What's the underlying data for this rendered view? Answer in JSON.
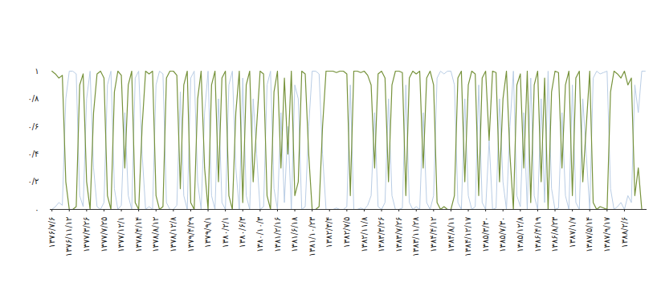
{
  "chart_data": {
    "type": "line",
    "categories": [
      "۱۳۷۶/۷/۶",
      null,
      null,
      null,
      null,
      "۱۳۷۶/۱۱/۱۲",
      null,
      null,
      null,
      null,
      "۱۳۷۷/۳/۲۶",
      null,
      null,
      null,
      null,
      "۱۳۷۷/۷/۲۵",
      null,
      null,
      null,
      null,
      "۱۳۷۷/۱۲/۱",
      null,
      null,
      null,
      null,
      "۱۳۷۸/۴/۱۴",
      null,
      null,
      null,
      null,
      "۱۳۷۸/۸/۱۲",
      null,
      null,
      null,
      null,
      "۱۳۷۸/۱۲/۸",
      null,
      null,
      null,
      null,
      "۱۳۷۹/۴/۲۹",
      null,
      null,
      null,
      null,
      "۱۳۷۹/۹/۱",
      null,
      null,
      null,
      null,
      "۱۳۸۰/۲/۱",
      null,
      null,
      null,
      null,
      "۱۳۸۰/۶/۳",
      null,
      null,
      null,
      null,
      "۱۳۸۰/۱۰/۳",
      null,
      null,
      null,
      null,
      "۱۳۸۱/۲/۱۶",
      null,
      null,
      null,
      null,
      "۱۳۸۱/۶/۱۸",
      null,
      null,
      null,
      null,
      "۱۳۸۱/۱۰/۲۳",
      null,
      null,
      null,
      null,
      "۱۳۸۲/۳/۴",
      null,
      null,
      null,
      null,
      "۱۳۸۲/۷/۵",
      null,
      null,
      null,
      null,
      "۱۳۸۲/۱۱/۸",
      null,
      null,
      null,
      null,
      "۱۳۸۳/۳/۲۶",
      null,
      null,
      null,
      null,
      "۱۳۸۳/۷/۲۶",
      null,
      null,
      null,
      null,
      "۱۳۸۳/۱۱/۲۸",
      null,
      null,
      null,
      null,
      "۱۳۸۴/۴/۱۲",
      null,
      null,
      null,
      null,
      "۱۳۸۴/۸/۱۱",
      null,
      null,
      null,
      null,
      "۱۳۸۴/۱۲/۱۷",
      null,
      null,
      null,
      null,
      "۱۳۸۵/۳/۳۰",
      null,
      null,
      null,
      null,
      "۱۳۸۵/۷/۳۰",
      null,
      null,
      null,
      null,
      "۱۳۸۵/۱۲/۸",
      null,
      null,
      null,
      null,
      "۱۳۸۶/۴/۱۹",
      null,
      null,
      null,
      null,
      "۱۳۸۶/۸/۲۳",
      null,
      null,
      null,
      null,
      "۱۳۸۷/۱/۷",
      null,
      null,
      null,
      null,
      "۱۳۸۷/۵/۱۴",
      null,
      null,
      null,
      null,
      "۱۳۸۷/۹/۱۷",
      null,
      null,
      null,
      null,
      "۱۳۸۸/۲/۶",
      null,
      null,
      null,
      null,
      null,
      null
    ],
    "series": [
      {
        "color": "#b9cde5",
        "values": [
          0,
          0.02,
          0.05,
          0.03,
          0.8,
          1,
          1,
          0.98,
          0.1,
          0.02,
          0.8,
          1,
          0.3,
          0.02,
          0,
          0.05,
          0.9,
          1,
          0.15,
          0,
          0.03,
          0.7,
          0.1,
          0,
          0.95,
          1,
          0.4,
          0,
          0.02,
          0,
          0.9,
          1,
          0.98,
          0.05,
          0,
          0,
          0.03,
          0.85,
          0.1,
          0,
          0.95,
          1,
          0.2,
          0,
          0.7,
          1,
          0.1,
          0,
          0.8,
          0.05,
          0,
          0.9,
          1,
          0.3,
          0,
          0.95,
          0.1,
          0,
          0.8,
          0.4,
          0,
          0.02,
          0.9,
          1,
          0.15,
          0,
          0.7,
          0.05,
          0.6,
          0,
          0.9,
          0.8,
          0,
          0.02,
          0.6,
          1,
          1,
          0.98,
          0.4,
          0,
          0,
          0,
          0.01,
          0,
          0,
          0.02,
          0.9,
          0,
          0,
          0.01,
          0,
          0.03,
          0.1,
          0.7,
          0.02,
          0,
          0.05,
          0.8,
          0.1,
          0,
          0,
          0.01,
          0.9,
          0.05,
          0,
          0.02,
          0,
          0.7,
          0.05,
          0,
          0.1,
          0.95,
          1,
          0.98,
          1,
          1,
          0.9,
          0.05,
          0,
          0.8,
          0.1,
          0,
          0.02,
          0.9,
          0.05,
          0,
          0.5,
          0,
          0.01,
          0.8,
          0.2,
          0,
          0.6,
          1,
          0.1,
          0.02,
          0.7,
          0,
          0.95,
          0.1,
          0,
          0.8,
          0.05,
          1,
          0.15,
          0,
          0.01,
          0.7,
          0.1,
          0,
          0.9,
          0.05,
          0,
          0.8,
          0.4,
          0,
          0.95,
          1,
          0.98,
          0.99,
          1,
          0.15,
          0,
          0.02,
          0.05,
          0,
          0.1,
          0.05,
          0.9,
          0.7,
          1,
          1
        ]
      },
      {
        "color": "#77933c",
        "values": [
          1,
          0.98,
          0.95,
          0.97,
          0.2,
          0,
          0,
          0.02,
          0.9,
          0.98,
          0.2,
          0,
          0.7,
          0.98,
          1,
          0.95,
          0.1,
          0,
          0.85,
          1,
          0.97,
          0.3,
          0.9,
          1,
          0.05,
          0,
          0.6,
          1,
          0.98,
          1,
          0.1,
          0,
          0.02,
          0.95,
          1,
          1,
          0.97,
          0.15,
          0.9,
          1,
          0.05,
          0,
          0.8,
          1,
          0.3,
          0,
          0.9,
          1,
          0.2,
          0.95,
          1,
          0.1,
          0,
          0.7,
          1,
          0.05,
          0.9,
          1,
          0.2,
          0.6,
          1,
          0.98,
          0.1,
          0,
          0.85,
          1,
          0.3,
          0.95,
          0.4,
          1,
          0.1,
          0.2,
          1,
          0.98,
          0.4,
          0,
          0,
          0.02,
          0.6,
          1,
          1,
          1,
          0.99,
          1,
          1,
          0.98,
          0.1,
          1,
          1,
          0.99,
          1,
          0.97,
          0.9,
          0.3,
          0.98,
          1,
          0.95,
          0.2,
          0.9,
          1,
          1,
          0.99,
          0.1,
          0.95,
          1,
          0.98,
          1,
          0.3,
          0.95,
          1,
          0.9,
          0.05,
          0,
          0.02,
          0,
          0,
          0.1,
          0.95,
          1,
          0.2,
          0.9,
          1,
          0.98,
          0.1,
          0.95,
          1,
          0.5,
          1,
          0.99,
          0.2,
          0.8,
          1,
          0.4,
          0,
          0.9,
          0.98,
          0.3,
          1,
          0.05,
          0.9,
          1,
          0.2,
          0.95,
          0,
          0.85,
          1,
          0.99,
          0.3,
          0.9,
          1,
          0.1,
          0.95,
          1,
          0.2,
          0.6,
          1,
          0.05,
          0,
          0.02,
          0.01,
          0,
          0.85,
          1,
          0.98,
          0.95,
          1,
          0.9,
          0.95,
          0.1,
          0.3,
          0,
          0
        ]
      }
    ],
    "ylim": [
      0,
      1
    ],
    "yticks": [
      {
        "value": 0,
        "label": "۰"
      },
      {
        "value": 0.2,
        "label": "۰/۲"
      },
      {
        "value": 0.4,
        "label": "۰/۴"
      },
      {
        "value": 0.6,
        "label": "۰/۶"
      },
      {
        "value": 0.8,
        "label": "۰/۸"
      },
      {
        "value": 1,
        "label": "۱"
      }
    ],
    "grid": false
  }
}
